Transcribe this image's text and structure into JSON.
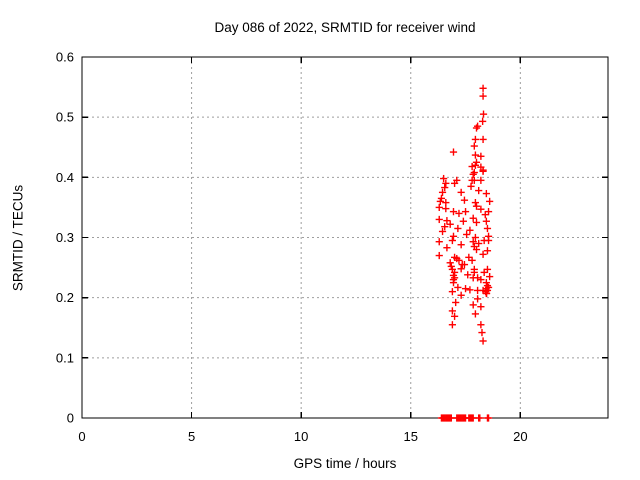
{
  "chart_data": {
    "type": "scatter",
    "title": "Day 086 of 2022, SRMTID for receiver wind",
    "xlabel": "GPS time / hours",
    "ylabel": "SRMTID / TECUs",
    "xlim": [
      0,
      24
    ],
    "ylim": [
      0,
      0.6
    ],
    "xticks": [
      0,
      5,
      10,
      15,
      20
    ],
    "yticks": [
      0,
      0.1,
      0.2,
      0.3,
      0.4,
      0.5,
      0.6
    ],
    "grid": true,
    "legend_position": "none",
    "marker": "plus",
    "marker_color": "#ff0000",
    "grid_color": "#9e9e9e",
    "axis_color": "#000000",
    "background_color": "#ffffff",
    "series": [
      {
        "name": "SRMTID",
        "points": [
          [
            18.3,
            0.548
          ],
          [
            18.3,
            0.535
          ],
          [
            18.32,
            0.505
          ],
          [
            18.28,
            0.493
          ],
          [
            18.05,
            0.485
          ],
          [
            18.0,
            0.482
          ],
          [
            17.95,
            0.463
          ],
          [
            18.3,
            0.463
          ],
          [
            17.9,
            0.452
          ],
          [
            16.95,
            0.442
          ],
          [
            17.95,
            0.437
          ],
          [
            18.2,
            0.435
          ],
          [
            18.0,
            0.425
          ],
          [
            17.95,
            0.42
          ],
          [
            17.8,
            0.418
          ],
          [
            18.2,
            0.417
          ],
          [
            18.3,
            0.412
          ],
          [
            17.9,
            0.408
          ],
          [
            18.3,
            0.41
          ],
          [
            17.85,
            0.405
          ],
          [
            16.5,
            0.398
          ],
          [
            17.1,
            0.395
          ],
          [
            17.8,
            0.395
          ],
          [
            17.9,
            0.395
          ],
          [
            18.2,
            0.395
          ],
          [
            16.6,
            0.39
          ],
          [
            17.0,
            0.39
          ],
          [
            16.55,
            0.383
          ],
          [
            17.75,
            0.385
          ],
          [
            16.45,
            0.375
          ],
          [
            17.3,
            0.375
          ],
          [
            18.45,
            0.373
          ],
          [
            18.1,
            0.378
          ],
          [
            16.4,
            0.365
          ],
          [
            17.45,
            0.362
          ],
          [
            16.35,
            0.36
          ],
          [
            16.6,
            0.358
          ],
          [
            17.95,
            0.358
          ],
          [
            18.6,
            0.36
          ],
          [
            16.3,
            0.35
          ],
          [
            16.6,
            0.348
          ],
          [
            18.0,
            0.352
          ],
          [
            16.95,
            0.343
          ],
          [
            17.5,
            0.343
          ],
          [
            18.2,
            0.347
          ],
          [
            18.55,
            0.343
          ],
          [
            17.2,
            0.34
          ],
          [
            18.4,
            0.338
          ],
          [
            16.3,
            0.33
          ],
          [
            16.65,
            0.328
          ],
          [
            17.4,
            0.327
          ],
          [
            18.0,
            0.325
          ],
          [
            18.45,
            0.327
          ],
          [
            16.55,
            0.318
          ],
          [
            17.15,
            0.315
          ],
          [
            17.7,
            0.312
          ],
          [
            18.5,
            0.315
          ],
          [
            16.45,
            0.31
          ],
          [
            16.95,
            0.302
          ],
          [
            17.55,
            0.305
          ],
          [
            17.95,
            0.3
          ],
          [
            18.55,
            0.302
          ],
          [
            16.8,
            0.322
          ],
          [
            17.85,
            0.332
          ],
          [
            16.9,
            0.295
          ],
          [
            17.85,
            0.293
          ],
          [
            18.35,
            0.295
          ],
          [
            16.3,
            0.293
          ],
          [
            17.3,
            0.288
          ],
          [
            17.9,
            0.285
          ],
          [
            16.65,
            0.283
          ],
          [
            18.0,
            0.28
          ],
          [
            18.5,
            0.278
          ],
          [
            16.3,
            0.27
          ],
          [
            17.1,
            0.265
          ],
          [
            17.8,
            0.262
          ],
          [
            16.8,
            0.258
          ],
          [
            17.35,
            0.255
          ],
          [
            17.65,
            0.267
          ],
          [
            18.3,
            0.272
          ],
          [
            17.0,
            0.267
          ],
          [
            17.2,
            0.262
          ],
          [
            18.55,
            0.295
          ],
          [
            18.1,
            0.29
          ],
          [
            16.9,
            0.247
          ],
          [
            17.0,
            0.242
          ],
          [
            16.95,
            0.237
          ],
          [
            16.95,
            0.23
          ],
          [
            17.9,
            0.242
          ],
          [
            18.05,
            0.233
          ],
          [
            17.3,
            0.248
          ],
          [
            17.9,
            0.247
          ],
          [
            18.5,
            0.247
          ],
          [
            17.0,
            0.233
          ],
          [
            17.85,
            0.233
          ],
          [
            18.2,
            0.23
          ],
          [
            16.85,
            0.252
          ],
          [
            17.6,
            0.238
          ],
          [
            18.35,
            0.242
          ],
          [
            17.45,
            0.255
          ],
          [
            18.6,
            0.235
          ],
          [
            18.45,
            0.225
          ],
          [
            18.5,
            0.22
          ],
          [
            17.15,
            0.217
          ],
          [
            17.7,
            0.213
          ],
          [
            18.05,
            0.212
          ],
          [
            18.55,
            0.217
          ],
          [
            18.45,
            0.207
          ],
          [
            17.3,
            0.204
          ],
          [
            16.9,
            0.21
          ],
          [
            17.5,
            0.215
          ],
          [
            18.05,
            0.198
          ],
          [
            16.95,
            0.225
          ],
          [
            18.42,
            0.21
          ],
          [
            18.46,
            0.207
          ],
          [
            18.5,
            0.212
          ],
          [
            18.44,
            0.215
          ],
          [
            18.3,
            0.212
          ],
          [
            17.05,
            0.192
          ],
          [
            17.85,
            0.188
          ],
          [
            18.2,
            0.185
          ],
          [
            16.9,
            0.178
          ],
          [
            17.95,
            0.173
          ],
          [
            17.0,
            0.169
          ],
          [
            16.9,
            0.155
          ],
          [
            18.2,
            0.155
          ],
          [
            18.25,
            0.142
          ],
          [
            18.3,
            0.128
          ],
          [
            16.4,
            0
          ],
          [
            16.45,
            0
          ],
          [
            16.5,
            0
          ],
          [
            16.55,
            0
          ],
          [
            16.6,
            0
          ],
          [
            16.65,
            0
          ],
          [
            16.7,
            0
          ],
          [
            16.75,
            0
          ],
          [
            16.8,
            0
          ],
          [
            16.85,
            0
          ],
          [
            17.1,
            0
          ],
          [
            17.15,
            0
          ],
          [
            17.2,
            0
          ],
          [
            17.25,
            0
          ],
          [
            17.3,
            0
          ],
          [
            17.35,
            0
          ],
          [
            17.4,
            0
          ],
          [
            17.45,
            0
          ],
          [
            17.5,
            0
          ],
          [
            17.65,
            0
          ],
          [
            17.7,
            0
          ],
          [
            17.75,
            0
          ],
          [
            17.8,
            0
          ],
          [
            17.85,
            0
          ],
          [
            18.1,
            0
          ],
          [
            18.15,
            0
          ],
          [
            18.5,
            0
          ],
          [
            18.55,
            0
          ]
        ]
      }
    ]
  }
}
